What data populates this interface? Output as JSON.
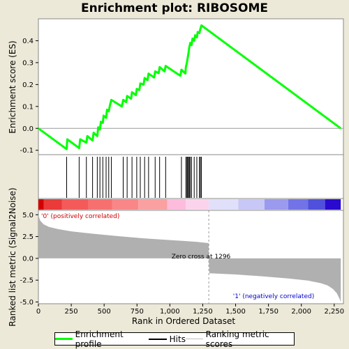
{
  "title": "Enrichment plot: RIBOSOME",
  "legend": {
    "enrichment_label": "Enrichment profile",
    "hits_label": "Hits",
    "ranking_label": "Ranking metric scores",
    "enrichment_color": "#00ff00",
    "hits_color": "#000000",
    "ranking_color": "#c0c0c0"
  },
  "chart_data": [
    {
      "type": "line",
      "ylabel": "Enrichment score (ES)",
      "ylim": [
        -0.12,
        0.5
      ],
      "yticks": [
        -0.1,
        0.0,
        0.1,
        0.2,
        0.3,
        0.4
      ],
      "ytick_labels": [
        "-0.1",
        "0.0",
        "0.1",
        "0.2",
        "0.3",
        "0.4"
      ],
      "xlim": [
        0,
        2320
      ],
      "grid": false,
      "series": [
        {
          "color": "#00ff00",
          "x": [
            0,
            215,
            220,
            310,
            318,
            365,
            372,
            412,
            420,
            448,
            455,
            468,
            475,
            490,
            496,
            515,
            522,
            535,
            545,
            555,
            635,
            645,
            668,
            675,
            705,
            712,
            742,
            748,
            768,
            775,
            800,
            808,
            830,
            838,
            880,
            888,
            915,
            922,
            960,
            968,
            1080,
            1088,
            1118,
            1122,
            1130,
            1135,
            1142,
            1148,
            1155,
            1165,
            1172,
            1185,
            1192,
            1205,
            1212,
            1225,
            1232,
            1240,
            2300
          ],
          "y": [
            0.0,
            -0.095,
            -0.05,
            -0.09,
            -0.05,
            -0.065,
            -0.035,
            -0.055,
            -0.02,
            -0.035,
            0.005,
            -0.005,
            0.03,
            0.025,
            0.058,
            0.048,
            0.085,
            0.078,
            0.108,
            0.13,
            0.1,
            0.13,
            0.12,
            0.148,
            0.135,
            0.165,
            0.152,
            0.18,
            0.175,
            0.205,
            0.2,
            0.23,
            0.22,
            0.25,
            0.232,
            0.26,
            0.252,
            0.28,
            0.26,
            0.285,
            0.24,
            0.268,
            0.25,
            0.28,
            0.3,
            0.32,
            0.345,
            0.37,
            0.39,
            0.38,
            0.41,
            0.4,
            0.425,
            0.415,
            0.44,
            0.435,
            0.455,
            0.47,
            0.0
          ]
        }
      ]
    },
    {
      "type": "hits",
      "xlim": [
        0,
        2320
      ],
      "hit_positions": [
        215,
        310,
        365,
        412,
        448,
        468,
        490,
        515,
        535,
        555,
        645,
        675,
        712,
        748,
        775,
        808,
        838,
        888,
        922,
        968,
        1088,
        1122,
        1130,
        1135,
        1142,
        1148,
        1155,
        1165,
        1185,
        1205,
        1225,
        1232,
        1240
      ]
    },
    {
      "type": "area",
      "xlabel": "Rank in Ordered Dataset",
      "ylabel": "Ranked list metric (Signal2Noise)",
      "xlim": [
        0,
        2320
      ],
      "ylim": [
        -5.2,
        5.5
      ],
      "yticks": [
        -5.0,
        -2.5,
        0.0,
        2.5,
        5.0
      ],
      "ytick_labels": [
        "-5.0",
        "-2.5",
        "0.0",
        "2.5",
        "5.0"
      ],
      "xticks": [
        0,
        250,
        500,
        750,
        1000,
        1250,
        1500,
        1750,
        2000,
        2250
      ],
      "xtick_labels": [
        "0",
        "250",
        "500",
        "750",
        "1,000",
        "1,250",
        "1,500",
        "1,750",
        "2,000",
        "2,250"
      ],
      "zero_cross": 1296,
      "zero_cross_label": "Zero cross at 1296",
      "positive_label": "'0' (positively correlated)",
      "negative_label": "'1' (negatively correlated)",
      "fill_color": "#b0b0b0",
      "x": [
        0,
        5,
        15,
        40,
        80,
        150,
        250,
        400,
        600,
        800,
        1000,
        1200,
        1295,
        1296,
        1300,
        1500,
        1700,
        1900,
        2050,
        2150,
        2200,
        2240,
        2270,
        2290,
        2300
      ],
      "values": [
        5.2,
        4.7,
        4.3,
        3.9,
        3.6,
        3.35,
        3.1,
        2.85,
        2.55,
        2.3,
        2.1,
        1.9,
        1.75,
        0.0,
        -1.7,
        -1.85,
        -2.05,
        -2.3,
        -2.55,
        -2.85,
        -3.1,
        -3.5,
        -4.0,
        -4.6,
        -5.0
      ]
    }
  ],
  "ranking_bar": {
    "segments": [
      {
        "to": 40,
        "color": "#d40000"
      },
      {
        "to": 180,
        "color": "#ea3a3a"
      },
      {
        "to": 380,
        "color": "#f45a5a"
      },
      {
        "to": 560,
        "color": "#f77070"
      },
      {
        "to": 760,
        "color": "#f98787"
      },
      {
        "to": 980,
        "color": "#fba0a0"
      },
      {
        "to": 1120,
        "color": "#fdbcdc"
      },
      {
        "to": 1296,
        "color": "#fbd4ec"
      },
      {
        "to": 1520,
        "color": "#e0e0fb"
      },
      {
        "to": 1720,
        "color": "#c8c8f6"
      },
      {
        "to": 1900,
        "color": "#9a9aef"
      },
      {
        "to": 2050,
        "color": "#7373e8"
      },
      {
        "to": 2180,
        "color": "#5050dc"
      },
      {
        "to": 2300,
        "color": "#2a0acf"
      }
    ]
  }
}
